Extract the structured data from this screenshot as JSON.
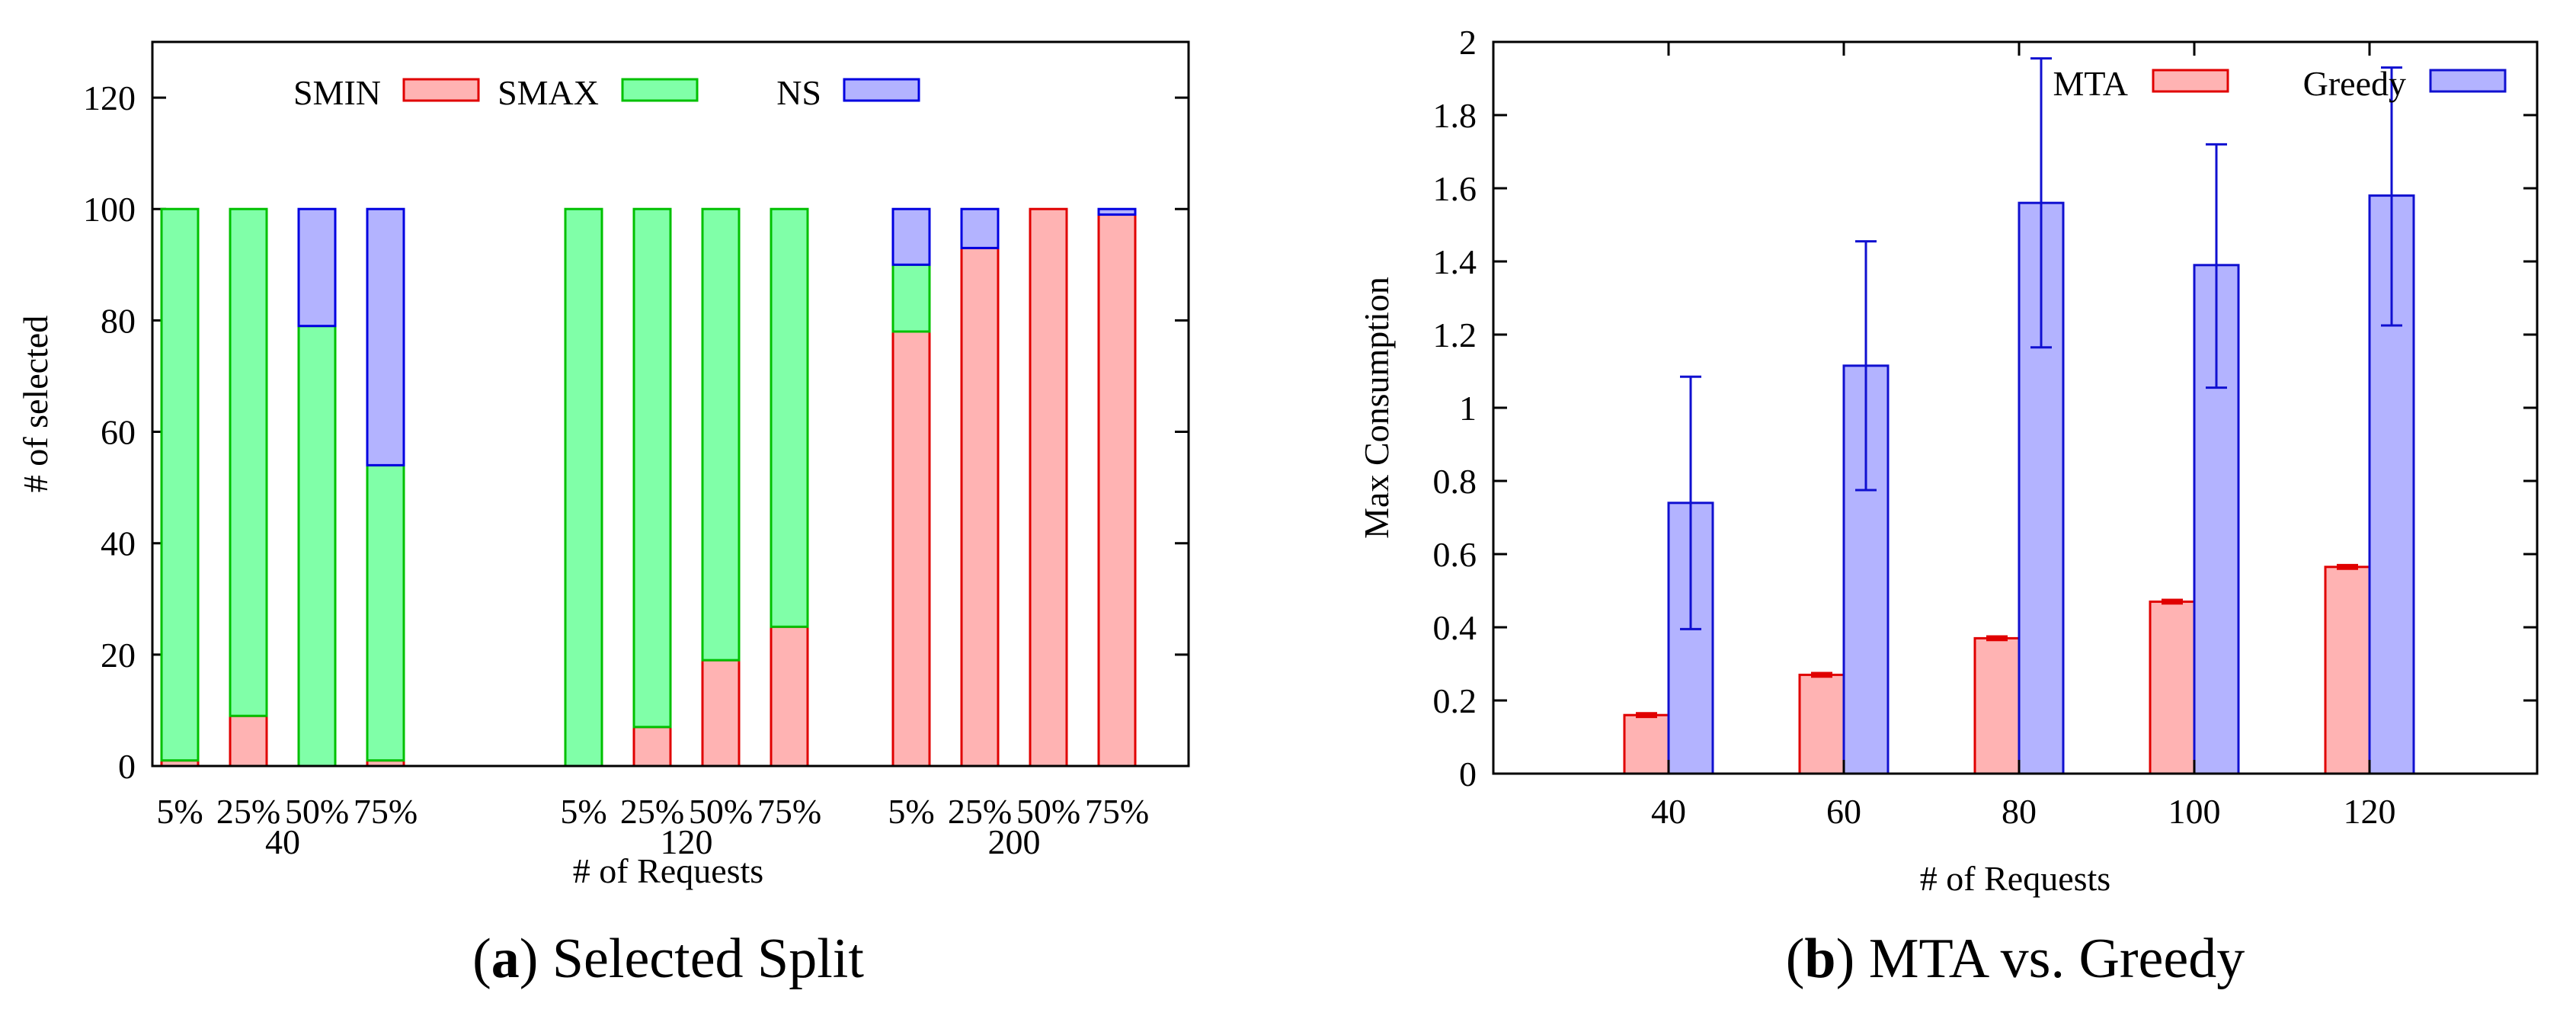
{
  "colors": {
    "smin_fill": "#ffb3b3",
    "smin_stroke": "#e00000",
    "smax_fill": "#80ffa8",
    "smax_stroke": "#00c000",
    "ns_fill": "#b3b3ff",
    "ns_stroke": "#0000e0",
    "mta_fill": "#ffb3b3",
    "mta_stroke": "#e00000",
    "greedy_fill": "#b3b3ff",
    "greedy_stroke": "#1010d0"
  },
  "chart_data": [
    {
      "type": "bar",
      "stacked": true,
      "caption_letter": "a",
      "caption_text": "Selected Split",
      "xlabel": "# of Requests",
      "ylabel": "# of selected",
      "ylim": [
        0,
        130
      ],
      "yticks": [
        0,
        20,
        40,
        60,
        80,
        100,
        120
      ],
      "legend_position": "top",
      "groups": [
        {
          "label": "40",
          "subcategories": [
            "5%",
            "25%",
            "50%",
            "75%"
          ],
          "SMIN": [
            1,
            9,
            0,
            1
          ],
          "SMAX": [
            99,
            91,
            79,
            53
          ],
          "NS": [
            0,
            0,
            21,
            46
          ]
        },
        {
          "label": "120",
          "subcategories": [
            "5%",
            "25%",
            "50%",
            "75%"
          ],
          "SMIN": [
            0,
            7,
            19,
            25
          ],
          "SMAX": [
            100,
            93,
            81,
            75
          ],
          "NS": [
            0,
            0,
            0,
            0
          ]
        },
        {
          "label": "200",
          "subcategories": [
            "5%",
            "25%",
            "50%",
            "75%"
          ],
          "SMIN": [
            78,
            93,
            100,
            99
          ],
          "SMAX": [
            12,
            0,
            0,
            0
          ],
          "NS": [
            10,
            7,
            0,
            1
          ]
        }
      ],
      "series": [
        {
          "name": "SMIN"
        },
        {
          "name": "SMAX"
        },
        {
          "name": "NS"
        }
      ]
    },
    {
      "type": "bar",
      "caption_letter": "b",
      "caption_text": "MTA vs. Greedy",
      "xlabel": "# of Requests",
      "ylabel": "Max Consumption",
      "ylim": [
        0,
        2
      ],
      "yticks": [
        "0",
        "0.2",
        "0.4",
        "0.6",
        "0.8",
        "1",
        "1.2",
        "1.4",
        "1.6",
        "1.8",
        "2"
      ],
      "categories": [
        "40",
        "60",
        "80",
        "100",
        "120"
      ],
      "legend_position": "top-right",
      "series": [
        {
          "name": "MTA",
          "values": [
            0.16,
            0.27,
            0.37,
            0.47,
            0.565
          ],
          "err_low": [
            0.155,
            0.265,
            0.365,
            0.465,
            0.56
          ],
          "err_high": [
            0.165,
            0.275,
            0.375,
            0.475,
            0.57
          ]
        },
        {
          "name": "Greedy",
          "values": [
            0.74,
            1.115,
            1.56,
            1.39,
            1.58
          ],
          "err_low": [
            0.395,
            0.775,
            1.165,
            1.055,
            1.225
          ],
          "err_high": [
            1.085,
            1.455,
            1.955,
            1.72,
            1.93
          ]
        }
      ]
    }
  ]
}
